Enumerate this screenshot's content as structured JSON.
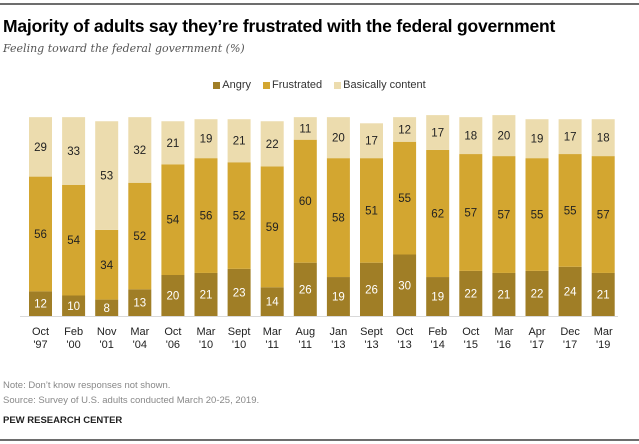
{
  "header": {
    "title": "Majority of adults say they’re frustrated with the federal government",
    "subtitle": "Feeling toward the federal government (%)"
  },
  "colors": {
    "angry": "#a07e26",
    "frustrated": "#d3a630",
    "content": "#ecdcae"
  },
  "footer": {
    "note": "Note: Don’t know responses not shown.",
    "source": "Source: Survey of U.S. adults conducted March 20-25, 2019.",
    "credit": "PEW RESEARCH CENTER"
  },
  "chart_data": {
    "type": "bar",
    "stacked": true,
    "title": "Majority of adults say they’re frustrated with the federal government",
    "subtitle": "Feeling toward the federal government (%)",
    "xlabel": "",
    "ylabel": "",
    "ylim": [
      0,
      100
    ],
    "grid": false,
    "legend_position": "top-center",
    "categories": [
      [
        "Oct",
        "'97"
      ],
      [
        "Feb",
        "'00"
      ],
      [
        "Nov",
        "'01"
      ],
      [
        "Mar",
        "'04"
      ],
      [
        "Oct",
        "'06"
      ],
      [
        "Mar",
        "'10"
      ],
      [
        "Sept",
        "'10"
      ],
      [
        "Mar",
        "'11"
      ],
      [
        "Aug",
        "'11"
      ],
      [
        "Jan",
        "'13"
      ],
      [
        "Sept",
        "'13"
      ],
      [
        "Oct",
        "'13"
      ],
      [
        "Feb",
        "'14"
      ],
      [
        "Oct",
        "'15"
      ],
      [
        "Mar",
        "'16"
      ],
      [
        "Apr",
        "'17"
      ],
      [
        "Dec",
        "'17"
      ],
      [
        "Mar",
        "'19"
      ]
    ],
    "series": [
      {
        "name": "Angry",
        "key": "angry",
        "values": [
          12,
          10,
          8,
          13,
          20,
          21,
          23,
          14,
          26,
          19,
          26,
          30,
          19,
          22,
          21,
          22,
          24,
          21
        ]
      },
      {
        "name": "Frustrated",
        "key": "frustrated",
        "values": [
          56,
          54,
          34,
          52,
          54,
          56,
          52,
          59,
          60,
          58,
          51,
          55,
          62,
          57,
          57,
          55,
          55,
          57
        ]
      },
      {
        "name": "Basically content",
        "key": "content",
        "values": [
          29,
          33,
          53,
          32,
          21,
          19,
          21,
          22,
          11,
          20,
          17,
          12,
          17,
          18,
          20,
          19,
          17,
          18
        ]
      }
    ]
  }
}
